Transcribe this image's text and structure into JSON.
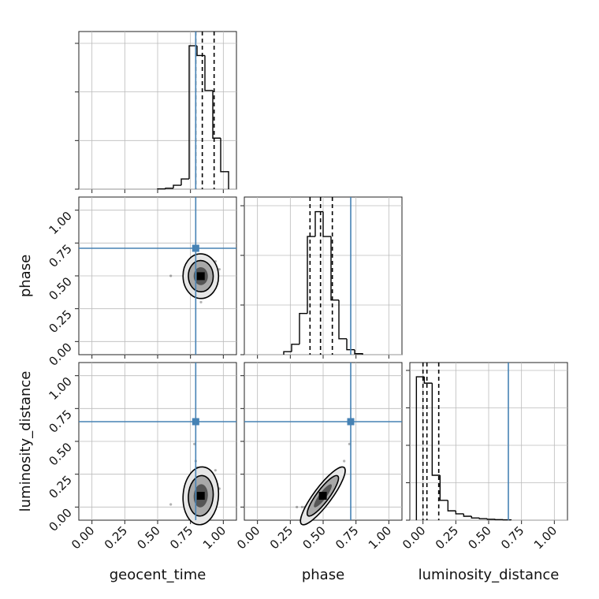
{
  "chart_data": {
    "type": "corner",
    "lim": [
      -0.1,
      1.1
    ],
    "ticks": [
      {
        "value": 0,
        "label": "0.00"
      },
      {
        "value": 0.25,
        "label": "0.25"
      },
      {
        "value": 0.5,
        "label": "0.50"
      },
      {
        "value": 0.75,
        "label": "0.75"
      },
      {
        "value": 1,
        "label": "1.00"
      }
    ],
    "grid": true,
    "truth_color": "#4682b4",
    "hist_color": "#000000",
    "parameters": [
      {
        "name": "geocent_time",
        "truth": 0.79,
        "quantiles": [
          0.79,
          0.84,
          0.93
        ],
        "bins": [
          0.5,
          0.56,
          0.62,
          0.68,
          0.74,
          0.8,
          0.86,
          0.92,
          0.98,
          1.04
        ],
        "counts": [
          5,
          20,
          80,
          210,
          2950,
          2750,
          2030,
          1050,
          360
        ],
        "hist_ylim": [
          0,
          3243
        ],
        "hist_yticks": [
          0,
          1000,
          2000,
          3000
        ],
        "samples": [
          0.78,
          0.8,
          0.76,
          0.82,
          0.79,
          0.85,
          0.88,
          0.77,
          0.81,
          0.9,
          0.83,
          0.79,
          0.92,
          0.75,
          0.86,
          0.8,
          0.84,
          0.78,
          0.95,
          0.81,
          0.87,
          0.77,
          0.93,
          0.79,
          0.82,
          0.89,
          0.76,
          0.84,
          0.8,
          0.97,
          0.78,
          0.83,
          0.91,
          0.79,
          0.86,
          0.6,
          0.8,
          0.88,
          0.82,
          0.94
        ]
      },
      {
        "name": "phase",
        "truth": 0.71,
        "quantiles": [
          0.4,
          0.48,
          0.57
        ],
        "bins": [
          0.2,
          0.26,
          0.32,
          0.38,
          0.44,
          0.5,
          0.56,
          0.62,
          0.68,
          0.74,
          0.8
        ],
        "counts": [
          60,
          210,
          830,
          2380,
          2880,
          2380,
          1100,
          320,
          100,
          20
        ],
        "hist_ylim": [
          0,
          3175
        ],
        "hist_yticks": [
          0,
          1000,
          2000,
          3000
        ],
        "samples": [
          0.47,
          0.49,
          0.45,
          0.52,
          0.44,
          0.5,
          0.55,
          0.42,
          0.47,
          0.4,
          0.58,
          0.51,
          0.46,
          0.48,
          0.36,
          0.62,
          0.44,
          0.53,
          0.5,
          0.39,
          0.6,
          0.56,
          0.43,
          0.66,
          0.34,
          0.48,
          0.5,
          0.54,
          0.46,
          0.55,
          0.7,
          0.3,
          0.58,
          0.45,
          0.52,
          0.5,
          0.64,
          0.42,
          0.49,
          0.61
        ]
      },
      {
        "name": "luminosity_distance",
        "truth": 0.65,
        "quantiles": [
          0.0,
          0.03,
          0.12
        ],
        "bins": [
          -0.05,
          0.01,
          0.07,
          0.13,
          0.19,
          0.25,
          0.31,
          0.37,
          0.43,
          0.49,
          0.55,
          0.61,
          0.67
        ],
        "counts": [
          3830,
          3660,
          1200,
          530,
          250,
          170,
          105,
          60,
          40,
          25,
          15,
          10
        ],
        "hist_ylim": [
          0,
          4210
        ],
        "hist_yticks": [
          0,
          1000,
          2000,
          3000,
          4000
        ],
        "samples": [
          0.02,
          0.05,
          0.0,
          0.08,
          0.01,
          0.04,
          0.12,
          0.0,
          0.03,
          0.02,
          0.18,
          0.06,
          0.03,
          0.01,
          0.0,
          0.25,
          0.02,
          0.07,
          0.05,
          0.01,
          0.22,
          0.1,
          0.02,
          0.35,
          0.0,
          0.04,
          0.03,
          0.09,
          0.02,
          0.14,
          0.48,
          0.0,
          0.16,
          0.01,
          0.06,
          0.02,
          0.3,
          0.01,
          0.04,
          0.28
        ]
      }
    ]
  }
}
